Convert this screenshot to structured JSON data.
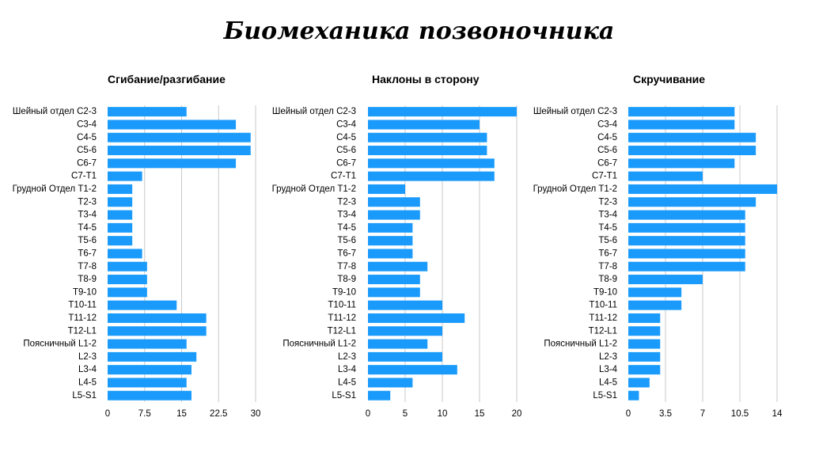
{
  "title": "Биомеханика позвоночника",
  "colors": {
    "bar": "#1a9bfc",
    "grid": "#c8c8c8",
    "text": "#000000"
  },
  "chart_data": [
    {
      "type": "bar",
      "orientation": "horizontal",
      "title": "Сгибание/разгибание",
      "categories": [
        "Шейный отдел C2-3",
        "C3-4",
        "C4-5",
        "C5-6",
        "C6-7",
        "C7-T1",
        "Грудной Отдел T1-2",
        "T2-3",
        "T3-4",
        "T4-5",
        "T5-6",
        "T6-7",
        "T7-8",
        "T8-9",
        "T9-10",
        "T10-11",
        "T11-12",
        "T12-L1",
        "Поясничный L1-2",
        "L2-3",
        "L3-4",
        "L4-5",
        "L5-S1"
      ],
      "values": [
        16,
        26,
        29,
        29,
        26,
        7,
        5,
        5,
        5,
        5,
        5,
        7,
        8,
        8,
        8,
        14,
        20,
        20,
        16,
        18,
        17,
        16,
        17
      ],
      "xlim": [
        0,
        30
      ],
      "ticks": [
        "0",
        "7.5",
        "15",
        "22.5",
        "30"
      ],
      "grid": true
    },
    {
      "type": "bar",
      "orientation": "horizontal",
      "title": "Наклоны в сторону",
      "categories": [
        "Шейный отдел C2-3",
        "C3-4",
        "C4-5",
        "C5-6",
        "C6-7",
        "C7-T1",
        "Грудной Отдел T1-2",
        "T2-3",
        "T3-4",
        "T4-5",
        "T5-6",
        "T6-7",
        "T7-8",
        "T8-9",
        "T9-10",
        "T10-11",
        "T11-12",
        "T12-L1",
        "Поясничный L1-2",
        "L2-3",
        "L3-4",
        "L4-5",
        "L5-S1"
      ],
      "values": [
        20,
        15,
        16,
        16,
        17,
        17,
        5,
        7,
        7,
        6,
        6,
        6,
        8,
        7,
        7,
        10,
        13,
        10,
        8,
        10,
        12,
        6,
        3
      ],
      "xlim": [
        0,
        20
      ],
      "ticks": [
        "0",
        "5",
        "10",
        "15",
        "20"
      ],
      "grid": true
    },
    {
      "type": "bar",
      "orientation": "horizontal",
      "title": "Скручивание",
      "categories": [
        "Шейный отдел C2-3",
        "C3-4",
        "C4-5",
        "C5-6",
        "C6-7",
        "C7-T1",
        "Грудной Отдел T1-2",
        "T2-3",
        "T3-4",
        "T4-5",
        "T5-6",
        "T6-7",
        "T7-8",
        "T8-9",
        "T9-10",
        "T10-11",
        "T11-12",
        "T12-L1",
        "Поясничный L1-2",
        "L2-3",
        "L3-4",
        "L4-5",
        "L5-S1"
      ],
      "values": [
        10,
        10,
        12,
        12,
        10,
        7,
        14,
        12,
        11,
        11,
        11,
        11,
        11,
        7,
        5,
        5,
        3,
        3,
        3,
        3,
        3,
        2,
        1
      ],
      "xlim": [
        0,
        14
      ],
      "ticks": [
        "0",
        "3.5",
        "7",
        "10.5",
        "14"
      ],
      "grid": true
    }
  ]
}
